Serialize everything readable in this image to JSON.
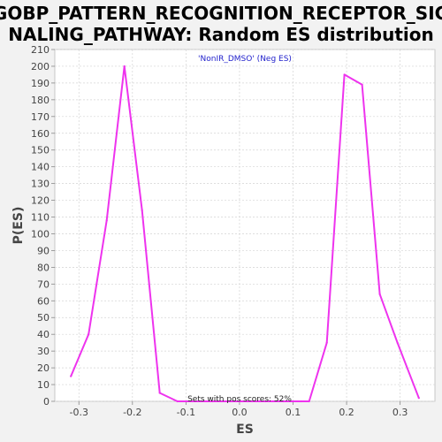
{
  "chart_data": {
    "type": "line",
    "title_line1": "GOBP_PATTERN_RECOGNITION_RECEPTOR_SIG",
    "title_line2": "NALING_PATHWAY: Random ES distribution",
    "xlabel": "ES",
    "ylabel": "P(ES)",
    "legend": "'NonIR_DMSO' (Neg ES)",
    "annotation": "Sets with pos scores: 52%",
    "xlim": [
      -0.345,
      0.365
    ],
    "ylim": [
      0,
      210
    ],
    "x_ticks": [
      -0.3,
      -0.2,
      -0.1,
      0.0,
      0.1,
      0.2,
      0.3
    ],
    "x_tick_labels": [
      "-0.3",
      "-0.2",
      "-0.1",
      "0.0",
      "0.1",
      "0.2",
      "0.3"
    ],
    "y_ticks": [
      0,
      10,
      20,
      30,
      40,
      50,
      60,
      70,
      80,
      90,
      100,
      110,
      120,
      130,
      140,
      150,
      160,
      170,
      180,
      190,
      200,
      210
    ],
    "y_tick_labels": [
      "0",
      "10",
      "20",
      "30",
      "40",
      "50",
      "60",
      "70",
      "80",
      "90",
      "100",
      "110",
      "120",
      "130",
      "140",
      "150",
      "160",
      "170",
      "180",
      "190",
      "200",
      "210"
    ],
    "grid": true,
    "series": [
      {
        "color": "#ee33ee",
        "x": [
          -0.315,
          -0.282,
          -0.248,
          -0.215,
          -0.182,
          -0.149,
          -0.116,
          -0.083,
          -0.05,
          -0.017,
          0.016,
          0.049,
          0.082,
          0.115,
          0.13,
          0.163,
          0.196,
          0.229,
          0.262,
          0.295,
          0.335
        ],
        "y": [
          15,
          40,
          108,
          200,
          114,
          5,
          0,
          0,
          0,
          0,
          0,
          0,
          0,
          0,
          0,
          35,
          195,
          189,
          64,
          35,
          2
        ]
      }
    ]
  }
}
